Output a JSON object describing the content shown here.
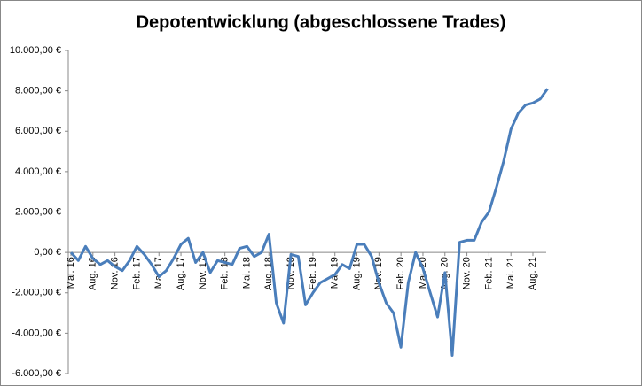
{
  "chart_data": {
    "type": "line",
    "title": "Depotentwicklung (abgeschlossene Trades)",
    "categories": [
      "Mai. 16",
      null,
      null,
      "Aug. 16",
      null,
      null,
      "Nov. 16",
      null,
      null,
      "Feb. 17",
      null,
      null,
      "Mai. 17",
      null,
      null,
      "Aug. 17",
      null,
      null,
      "Nov. 17",
      null,
      null,
      "Feb. 18",
      null,
      null,
      "Mai. 18",
      null,
      null,
      "Aug. 18",
      null,
      null,
      "Nov. 18",
      null,
      null,
      "Feb. 19",
      null,
      null,
      "Mai. 19",
      null,
      null,
      "Aug. 19",
      null,
      null,
      "Nov. 19",
      null,
      null,
      "Feb. 20",
      null,
      null,
      "Mai. 20",
      null,
      null,
      "Aug. 20",
      null,
      null,
      "Nov. 20",
      null,
      null,
      "Feb. 21",
      null,
      null,
      "Mai. 21",
      null,
      null,
      "Aug. 21",
      null,
      null
    ],
    "series": [
      {
        "color": "#4a7ebb",
        "values": [
          0,
          -400,
          300,
          -300,
          -600,
          -400,
          -700,
          -900,
          -400,
          300,
          -100,
          -600,
          -1200,
          -900,
          -300,
          400,
          700,
          -500,
          0,
          -1000,
          -400,
          -500,
          -600,
          200,
          300,
          -200,
          0,
          900,
          -2500,
          -3500,
          -100,
          -200,
          -2600,
          -2000,
          -1500,
          -1300,
          -1100,
          -600,
          -800,
          400,
          400,
          -200,
          -1500,
          -2500,
          -3000,
          -4700,
          -1500,
          0,
          -800,
          -2000,
          -3200,
          -1000,
          -5100,
          500,
          600,
          600,
          1500,
          2000,
          3200,
          4500,
          6100,
          6900,
          7300,
          7400,
          7600,
          8100
        ]
      }
    ],
    "ylim": [
      -6000,
      10000
    ],
    "yticks": [
      {
        "value": -6000,
        "label": "-6.000,00 €"
      },
      {
        "value": -4000,
        "label": "-4.000,00 €"
      },
      {
        "value": -2000,
        "label": "-2.000,00 €"
      },
      {
        "value": 0,
        "label": "0,00 €"
      },
      {
        "value": 2000,
        "label": "2.000,00 €"
      },
      {
        "value": 4000,
        "label": "4.000,00 €"
      },
      {
        "value": 6000,
        "label": "6.000,00 €"
      },
      {
        "value": 8000,
        "label": "8.000,00 €"
      },
      {
        "value": 10000,
        "label": "10.000,00 €"
      }
    ],
    "grid": false
  }
}
